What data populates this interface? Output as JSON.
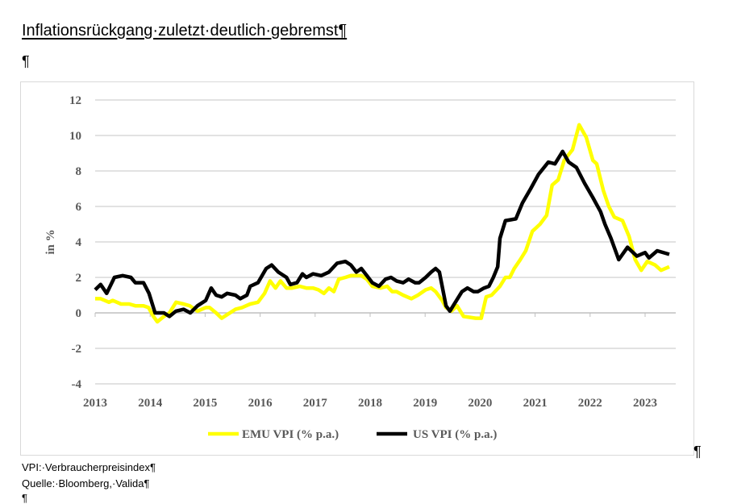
{
  "document": {
    "title": "Inflationsrückgang·zuletzt·deutlich·gebremst¶",
    "empty_paragraph": "¶",
    "after_chart_mark": "¶",
    "footnotes": [
      "VPI:·Verbraucherpreisindex¶",
      "Quelle:·Bloomberg,·Valida¶",
      "¶"
    ]
  },
  "chart_data": {
    "type": "line",
    "title": "",
    "xlabel": "",
    "ylabel": "in %",
    "ylim": [
      -4,
      12
    ],
    "yticks": [
      -4,
      -2,
      0,
      2,
      4,
      6,
      8,
      10,
      12
    ],
    "xlim": [
      2013,
      2023.6
    ],
    "xticks": [
      "2013",
      "2014",
      "2015",
      "2016",
      "2017",
      "2018",
      "2019",
      "2020",
      "2021",
      "2022",
      "2023"
    ],
    "grid": true,
    "legend_position": "bottom",
    "series": [
      {
        "name": "EMU VPI (% p.a.)",
        "color": "#ffff00",
        "points": [
          [
            2013.0,
            0.8
          ],
          [
            2013.1,
            0.8
          ],
          [
            2013.25,
            0.6
          ],
          [
            2013.32,
            0.7
          ],
          [
            2013.47,
            0.5
          ],
          [
            2013.62,
            0.5
          ],
          [
            2013.73,
            0.4
          ],
          [
            2013.88,
            0.4
          ],
          [
            2013.97,
            0.3
          ],
          [
            2014.06,
            -0.2
          ],
          [
            2014.13,
            -0.5
          ],
          [
            2014.25,
            -0.2
          ],
          [
            2014.35,
            0.0
          ],
          [
            2014.47,
            0.6
          ],
          [
            2014.61,
            0.5
          ],
          [
            2014.72,
            0.4
          ],
          [
            2014.86,
            0.1
          ],
          [
            2015.01,
            0.3
          ],
          [
            2015.08,
            0.3
          ],
          [
            2015.2,
            0.0
          ],
          [
            2015.3,
            -0.3
          ],
          [
            2015.4,
            -0.1
          ],
          [
            2015.55,
            0.2
          ],
          [
            2015.67,
            0.3
          ],
          [
            2015.82,
            0.5
          ],
          [
            2015.96,
            0.6
          ],
          [
            2016.08,
            1.1
          ],
          [
            2016.18,
            1.8
          ],
          [
            2016.28,
            1.4
          ],
          [
            2016.37,
            1.8
          ],
          [
            2016.48,
            1.4
          ],
          [
            2016.58,
            1.4
          ],
          [
            2016.72,
            1.5
          ],
          [
            2016.84,
            1.4
          ],
          [
            2016.96,
            1.4
          ],
          [
            2017.06,
            1.3
          ],
          [
            2017.16,
            1.1
          ],
          [
            2017.25,
            1.4
          ],
          [
            2017.34,
            1.2
          ],
          [
            2017.43,
            1.9
          ],
          [
            2017.55,
            2.0
          ],
          [
            2017.65,
            2.1
          ],
          [
            2017.84,
            2.1
          ],
          [
            2017.94,
            1.9
          ],
          [
            2018.04,
            1.5
          ],
          [
            2018.19,
            1.4
          ],
          [
            2018.31,
            1.5
          ],
          [
            2018.4,
            1.2
          ],
          [
            2018.48,
            1.2
          ],
          [
            2018.6,
            1.0
          ],
          [
            2018.75,
            0.8
          ],
          [
            2018.87,
            1.0
          ],
          [
            2019.01,
            1.3
          ],
          [
            2019.11,
            1.4
          ],
          [
            2019.19,
            1.2
          ],
          [
            2019.31,
            0.7
          ],
          [
            2019.38,
            0.3
          ],
          [
            2019.48,
            0.1
          ],
          [
            2019.58,
            0.4
          ],
          [
            2019.7,
            -0.2
          ],
          [
            2019.92,
            -0.3
          ],
          [
            2020.02,
            -0.3
          ],
          [
            2020.11,
            0.9
          ],
          [
            2020.21,
            1.0
          ],
          [
            2020.36,
            1.5
          ],
          [
            2020.46,
            2.0
          ],
          [
            2020.54,
            2.0
          ],
          [
            2020.62,
            2.5
          ],
          [
            2020.73,
            3.0
          ],
          [
            2020.83,
            3.5
          ],
          [
            2020.95,
            4.6
          ],
          [
            2021.09,
            5.0
          ],
          [
            2021.21,
            5.5
          ],
          [
            2021.31,
            7.2
          ],
          [
            2021.42,
            7.5
          ],
          [
            2021.53,
            8.6
          ],
          [
            2021.68,
            9.2
          ],
          [
            2021.8,
            10.6
          ],
          [
            2021.93,
            9.9
          ],
          [
            2022.05,
            8.6
          ],
          [
            2022.12,
            8.4
          ],
          [
            2022.24,
            6.9
          ],
          [
            2022.34,
            6.0
          ],
          [
            2022.44,
            5.4
          ],
          [
            2022.59,
            5.2
          ],
          [
            2022.71,
            4.3
          ],
          [
            2022.82,
            3.0
          ],
          [
            2022.93,
            2.4
          ],
          [
            2023.04,
            2.9
          ],
          [
            2023.18,
            2.7
          ],
          [
            2023.29,
            2.4
          ],
          [
            2023.44,
            2.6
          ]
        ]
      },
      {
        "name": "US VPI (% p.a.)",
        "color": "#000000",
        "points": [
          [
            2013.0,
            1.3
          ],
          [
            2013.1,
            1.6
          ],
          [
            2013.21,
            1.1
          ],
          [
            2013.35,
            2.0
          ],
          [
            2013.5,
            2.1
          ],
          [
            2013.65,
            2.0
          ],
          [
            2013.73,
            1.7
          ],
          [
            2013.88,
            1.7
          ],
          [
            2013.98,
            1.1
          ],
          [
            2014.09,
            0.0
          ],
          [
            2014.25,
            0.0
          ],
          [
            2014.35,
            -0.2
          ],
          [
            2014.47,
            0.1
          ],
          [
            2014.61,
            0.2
          ],
          [
            2014.73,
            0.0
          ],
          [
            2014.86,
            0.4
          ],
          [
            2015.01,
            0.7
          ],
          [
            2015.11,
            1.4
          ],
          [
            2015.2,
            1.0
          ],
          [
            2015.3,
            0.9
          ],
          [
            2015.4,
            1.1
          ],
          [
            2015.55,
            1.0
          ],
          [
            2015.64,
            0.8
          ],
          [
            2015.76,
            1.0
          ],
          [
            2015.82,
            1.5
          ],
          [
            2015.96,
            1.7
          ],
          [
            2016.11,
            2.5
          ],
          [
            2016.21,
            2.7
          ],
          [
            2016.33,
            2.3
          ],
          [
            2016.48,
            2.0
          ],
          [
            2016.55,
            1.6
          ],
          [
            2016.67,
            1.7
          ],
          [
            2016.77,
            2.2
          ],
          [
            2016.84,
            2.0
          ],
          [
            2016.96,
            2.2
          ],
          [
            2017.11,
            2.1
          ],
          [
            2017.25,
            2.3
          ],
          [
            2017.4,
            2.8
          ],
          [
            2017.55,
            2.9
          ],
          [
            2017.65,
            2.7
          ],
          [
            2017.75,
            2.3
          ],
          [
            2017.84,
            2.5
          ],
          [
            2017.94,
            2.1
          ],
          [
            2018.04,
            1.7
          ],
          [
            2018.16,
            1.5
          ],
          [
            2018.28,
            1.9
          ],
          [
            2018.38,
            2.0
          ],
          [
            2018.48,
            1.8
          ],
          [
            2018.6,
            1.7
          ],
          [
            2018.7,
            1.9
          ],
          [
            2018.82,
            1.7
          ],
          [
            2018.89,
            1.7
          ],
          [
            2019.01,
            2.0
          ],
          [
            2019.11,
            2.3
          ],
          [
            2019.19,
            2.5
          ],
          [
            2019.26,
            2.3
          ],
          [
            2019.38,
            0.4
          ],
          [
            2019.45,
            0.1
          ],
          [
            2019.57,
            0.7
          ],
          [
            2019.67,
            1.2
          ],
          [
            2019.77,
            1.4
          ],
          [
            2019.88,
            1.2
          ],
          [
            2019.96,
            1.2
          ],
          [
            2020.07,
            1.4
          ],
          [
            2020.16,
            1.5
          ],
          [
            2020.24,
            2.0
          ],
          [
            2020.32,
            2.6
          ],
          [
            2020.36,
            4.2
          ],
          [
            2020.46,
            5.2
          ],
          [
            2020.65,
            5.3
          ],
          [
            2020.77,
            6.2
          ],
          [
            2020.92,
            7.0
          ],
          [
            2021.06,
            7.8
          ],
          [
            2021.24,
            8.5
          ],
          [
            2021.36,
            8.4
          ],
          [
            2021.5,
            9.1
          ],
          [
            2021.61,
            8.5
          ],
          [
            2021.75,
            8.2
          ],
          [
            2021.9,
            7.3
          ],
          [
            2022.05,
            6.5
          ],
          [
            2022.19,
            5.7
          ],
          [
            2022.27,
            5.0
          ],
          [
            2022.38,
            4.2
          ],
          [
            2022.52,
            3.0
          ],
          [
            2022.68,
            3.7
          ],
          [
            2022.85,
            3.2
          ],
          [
            2023.0,
            3.4
          ],
          [
            2023.07,
            3.1
          ],
          [
            2023.22,
            3.5
          ],
          [
            2023.44,
            3.3
          ]
        ]
      }
    ]
  }
}
